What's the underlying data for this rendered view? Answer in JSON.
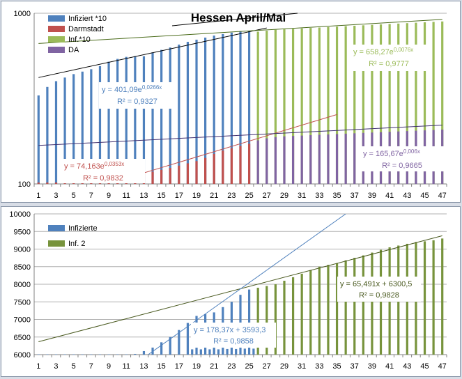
{
  "chart_data": [
    {
      "type": "bar",
      "title": "Hessen April/Mai",
      "yscale": "log",
      "ylim": [
        100,
        1000
      ],
      "y_ticks": [
        "100",
        "1000"
      ],
      "x_tick_labels": [
        "1",
        "3",
        "5",
        "7",
        "9",
        "11",
        "13",
        "15",
        "17",
        "19",
        "21",
        "23",
        "25",
        "27",
        "29",
        "31",
        "33",
        "35",
        "37",
        "39",
        "41",
        "43",
        "45",
        "47"
      ],
      "legend": [
        "Infiziert *10",
        "Darmstadt",
        "Inf.*10",
        "DA"
      ],
      "colors": {
        "infiziert": "#4f81bd",
        "darmstadt": "#c0504d",
        "inf10": "#9bbb59",
        "da": "#8064a2"
      },
      "series": [
        {
          "name": "Infiziert *10",
          "x": [
            1,
            2,
            3,
            4,
            5,
            6,
            7,
            8,
            9,
            10,
            11,
            12,
            13,
            14,
            15,
            16,
            17,
            18,
            19,
            20,
            21,
            22,
            23,
            24,
            25
          ],
          "values": [
            330,
            370,
            400,
            420,
            440,
            455,
            470,
            490,
            520,
            540,
            555,
            560,
            560,
            590,
            610,
            630,
            655,
            680,
            700,
            720,
            740,
            755,
            770,
            785,
            785
          ]
        },
        {
          "name": "Darmstadt",
          "x": [
            1,
            2,
            3,
            4,
            5,
            6,
            7,
            8,
            9,
            10,
            11,
            12,
            13,
            14,
            15,
            16,
            17,
            18,
            19,
            20,
            21,
            22,
            23,
            24,
            25
          ],
          "values": [
            102,
            102,
            102,
            102,
            102,
            102,
            102,
            102,
            103,
            103,
            104,
            110,
            115,
            118,
            121,
            124,
            128,
            132,
            136,
            142,
            150,
            157,
            162,
            167,
            172
          ]
        },
        {
          "name": "Inf.*10",
          "x": [
            26,
            27,
            28,
            29,
            30,
            31,
            32,
            33,
            34,
            35,
            36,
            37,
            38,
            39,
            40,
            41,
            42,
            43,
            44,
            45,
            46,
            47
          ],
          "values": [
            780,
            790,
            800,
            805,
            810,
            815,
            820,
            825,
            830,
            835,
            840,
            845,
            850,
            855,
            860,
            865,
            870,
            875,
            880,
            885,
            890,
            895
          ]
        },
        {
          "name": "DA",
          "x": [
            26,
            27,
            28,
            29,
            30,
            31,
            32,
            33,
            34,
            35,
            36,
            37,
            38,
            39,
            40,
            41,
            42,
            43,
            44,
            45,
            46,
            47
          ],
          "values": [
            180,
            185,
            188,
            190,
            191,
            192,
            193,
            194,
            195,
            196,
            197,
            198,
            199,
            200,
            201,
            202,
            203,
            204,
            205,
            206,
            207,
            208
          ]
        }
      ],
      "trendlines": [
        {
          "color": "#000000",
          "x": [
            1,
            27
          ],
          "values": [
            420,
            820
          ]
        },
        {
          "color": "#c0504d",
          "x": [
            11,
            35
          ],
          "values": [
            108,
            255
          ]
        },
        {
          "color": "#4a6b1a",
          "x": [
            1,
            47
          ],
          "values": [
            665,
            920
          ]
        },
        {
          "color": "#3f3070",
          "x": [
            1,
            47
          ],
          "values": [
            168,
            221
          ]
        }
      ],
      "annotations": [
        {
          "color": "#4f81bd",
          "eq_pre": "y = 401,09e",
          "eq_sup": "0,0266x",
          "r2": "R² = 0,9327"
        },
        {
          "color": "#9bbb59",
          "eq_pre": "y = 658,27e",
          "eq_sup": "0,0076x",
          "r2": "R² = 0,9777"
        },
        {
          "color": "#c0504d",
          "eq_pre": "y = 74,163e",
          "eq_sup": "0,0353x",
          "r2": "R² = 0,9832"
        },
        {
          "color": "#8064a2",
          "eq_pre": "y = 165,67e",
          "eq_sup": "0,006x",
          "r2": "R² = 0,9665"
        }
      ]
    },
    {
      "type": "bar",
      "ylim": [
        6000,
        10000
      ],
      "y_ticks": [
        "6000",
        "6500",
        "7000",
        "7500",
        "8000",
        "8500",
        "9000",
        "9500",
        "10000"
      ],
      "x_tick_labels": [
        "1",
        "3",
        "5",
        "7",
        "9",
        "11",
        "13",
        "15",
        "17",
        "19",
        "21",
        "23",
        "25",
        "27",
        "29",
        "31",
        "33",
        "35",
        "37",
        "39",
        "41",
        "43",
        "45",
        "47"
      ],
      "legend": [
        "Infizierte",
        "Inf. 2"
      ],
      "colors": {
        "infizierte": "#4f81bd",
        "inf2": "#77933c"
      },
      "series": [
        {
          "name": "Infizierte",
          "x": [
            1,
            2,
            3,
            4,
            5,
            6,
            7,
            8,
            9,
            10,
            11,
            12,
            13,
            14,
            15,
            16,
            17,
            18,
            19,
            20,
            21,
            22,
            23,
            24,
            25
          ],
          "values": [
            6010,
            6010,
            6010,
            6010,
            6010,
            6010,
            6010,
            6010,
            6010,
            6010,
            6010,
            6020,
            6100,
            6200,
            6350,
            6500,
            6700,
            6900,
            7100,
            7150,
            7200,
            7350,
            7500,
            7700,
            7850
          ]
        },
        {
          "name": "Inf. 2",
          "x": [
            26,
            27,
            28,
            29,
            30,
            31,
            32,
            33,
            34,
            35,
            36,
            37,
            38,
            39,
            40,
            41,
            42,
            43,
            44,
            45,
            46,
            47
          ],
          "values": [
            7900,
            7950,
            8000,
            8100,
            8200,
            8300,
            8400,
            8500,
            8550,
            8600,
            8680,
            8750,
            8820,
            8900,
            8980,
            9050,
            9100,
            9150,
            9200,
            9220,
            9250,
            9300
          ]
        }
      ],
      "secondary_bars": {
        "color": "#4f81bd",
        "x": [
          18,
          19,
          20,
          21,
          22,
          23,
          24,
          25
        ],
        "values": [
          6150,
          6150,
          6150,
          6150,
          6160,
          6160,
          6170,
          6170
        ]
      },
      "trendlines": [
        {
          "color": "#4a5a20",
          "x": [
            1,
            47
          ],
          "values": [
            6366,
            9378
          ]
        },
        {
          "color": "#4f81bd",
          "x": [
            13,
            36
          ],
          "values": [
            5912,
            10000
          ]
        }
      ],
      "annotations": [
        {
          "color": "#4f81bd",
          "eq": "y = 178,37x + 3593,3",
          "r2": "R² = 0,9858"
        },
        {
          "color": "#4a5a20",
          "eq": "y = 65,491x + 6300,5",
          "r2": "R² = 0,9828"
        }
      ]
    }
  ]
}
